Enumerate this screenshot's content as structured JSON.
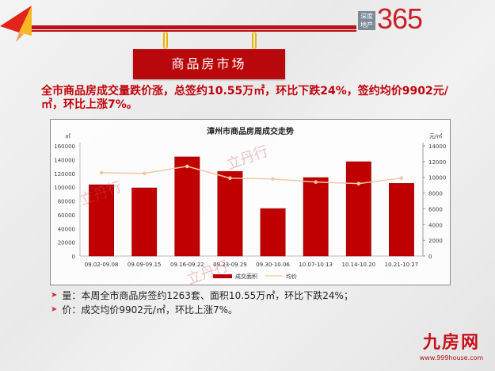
{
  "header": {
    "logo_box_lines": [
      "深度",
      "地产"
    ],
    "logo_number": "365",
    "banner_title": "商品房市场"
  },
  "headline": "全市商品房成交量跌价涨，总签约10.55万㎡，环比下跌24%，签约均价9902元/㎡，环比上涨7%。",
  "watermark": "立丹行",
  "chart_data": {
    "type": "bar",
    "title": "漳州市商品房周成交走势",
    "categories": [
      "09.02-09.08",
      "09.09-09.15",
      "09.16-09.22",
      "09.23-09.29",
      "09.30-10.06",
      "10.07-10.13",
      "10.14-10.20",
      "10.21-10.27"
    ],
    "series": [
      {
        "name": "成交面积",
        "type": "bar",
        "axis": "left",
        "color": "#c00000",
        "values": [
          103600,
          99000,
          144000,
          123000,
          69000,
          114000,
          137000,
          105500
        ]
      },
      {
        "name": "均价",
        "type": "line",
        "axis": "right",
        "color": "#f4c7a8",
        "values": [
          10600,
          10500,
          11400,
          9900,
          9800,
          9400,
          9200,
          9902
        ]
      }
    ],
    "ylabel_left": "㎡",
    "ylabel_right": "元/㎡",
    "ylim_left": [
      0,
      160000
    ],
    "ylim_right": [
      0,
      14000
    ],
    "yticks_left": [
      "0",
      "20000",
      "40000",
      "60000",
      "80000",
      "100000",
      "120000",
      "140000",
      "160000"
    ],
    "yticks_right": [
      "0",
      "2000",
      "4000",
      "6000",
      "8000",
      "10000",
      "12000",
      "14000"
    ],
    "legend": [
      "成交面积",
      "均价"
    ],
    "legend_position": "bottom",
    "grid": false
  },
  "bullets": [
    "量：本周全市商品房签约1263套、面积10.55万㎡，环比下跌24%；",
    "价：成交均价9902元/㎡，环比上涨7%。"
  ],
  "footer": {
    "brand": "九房网",
    "url": "www.999house.com"
  }
}
